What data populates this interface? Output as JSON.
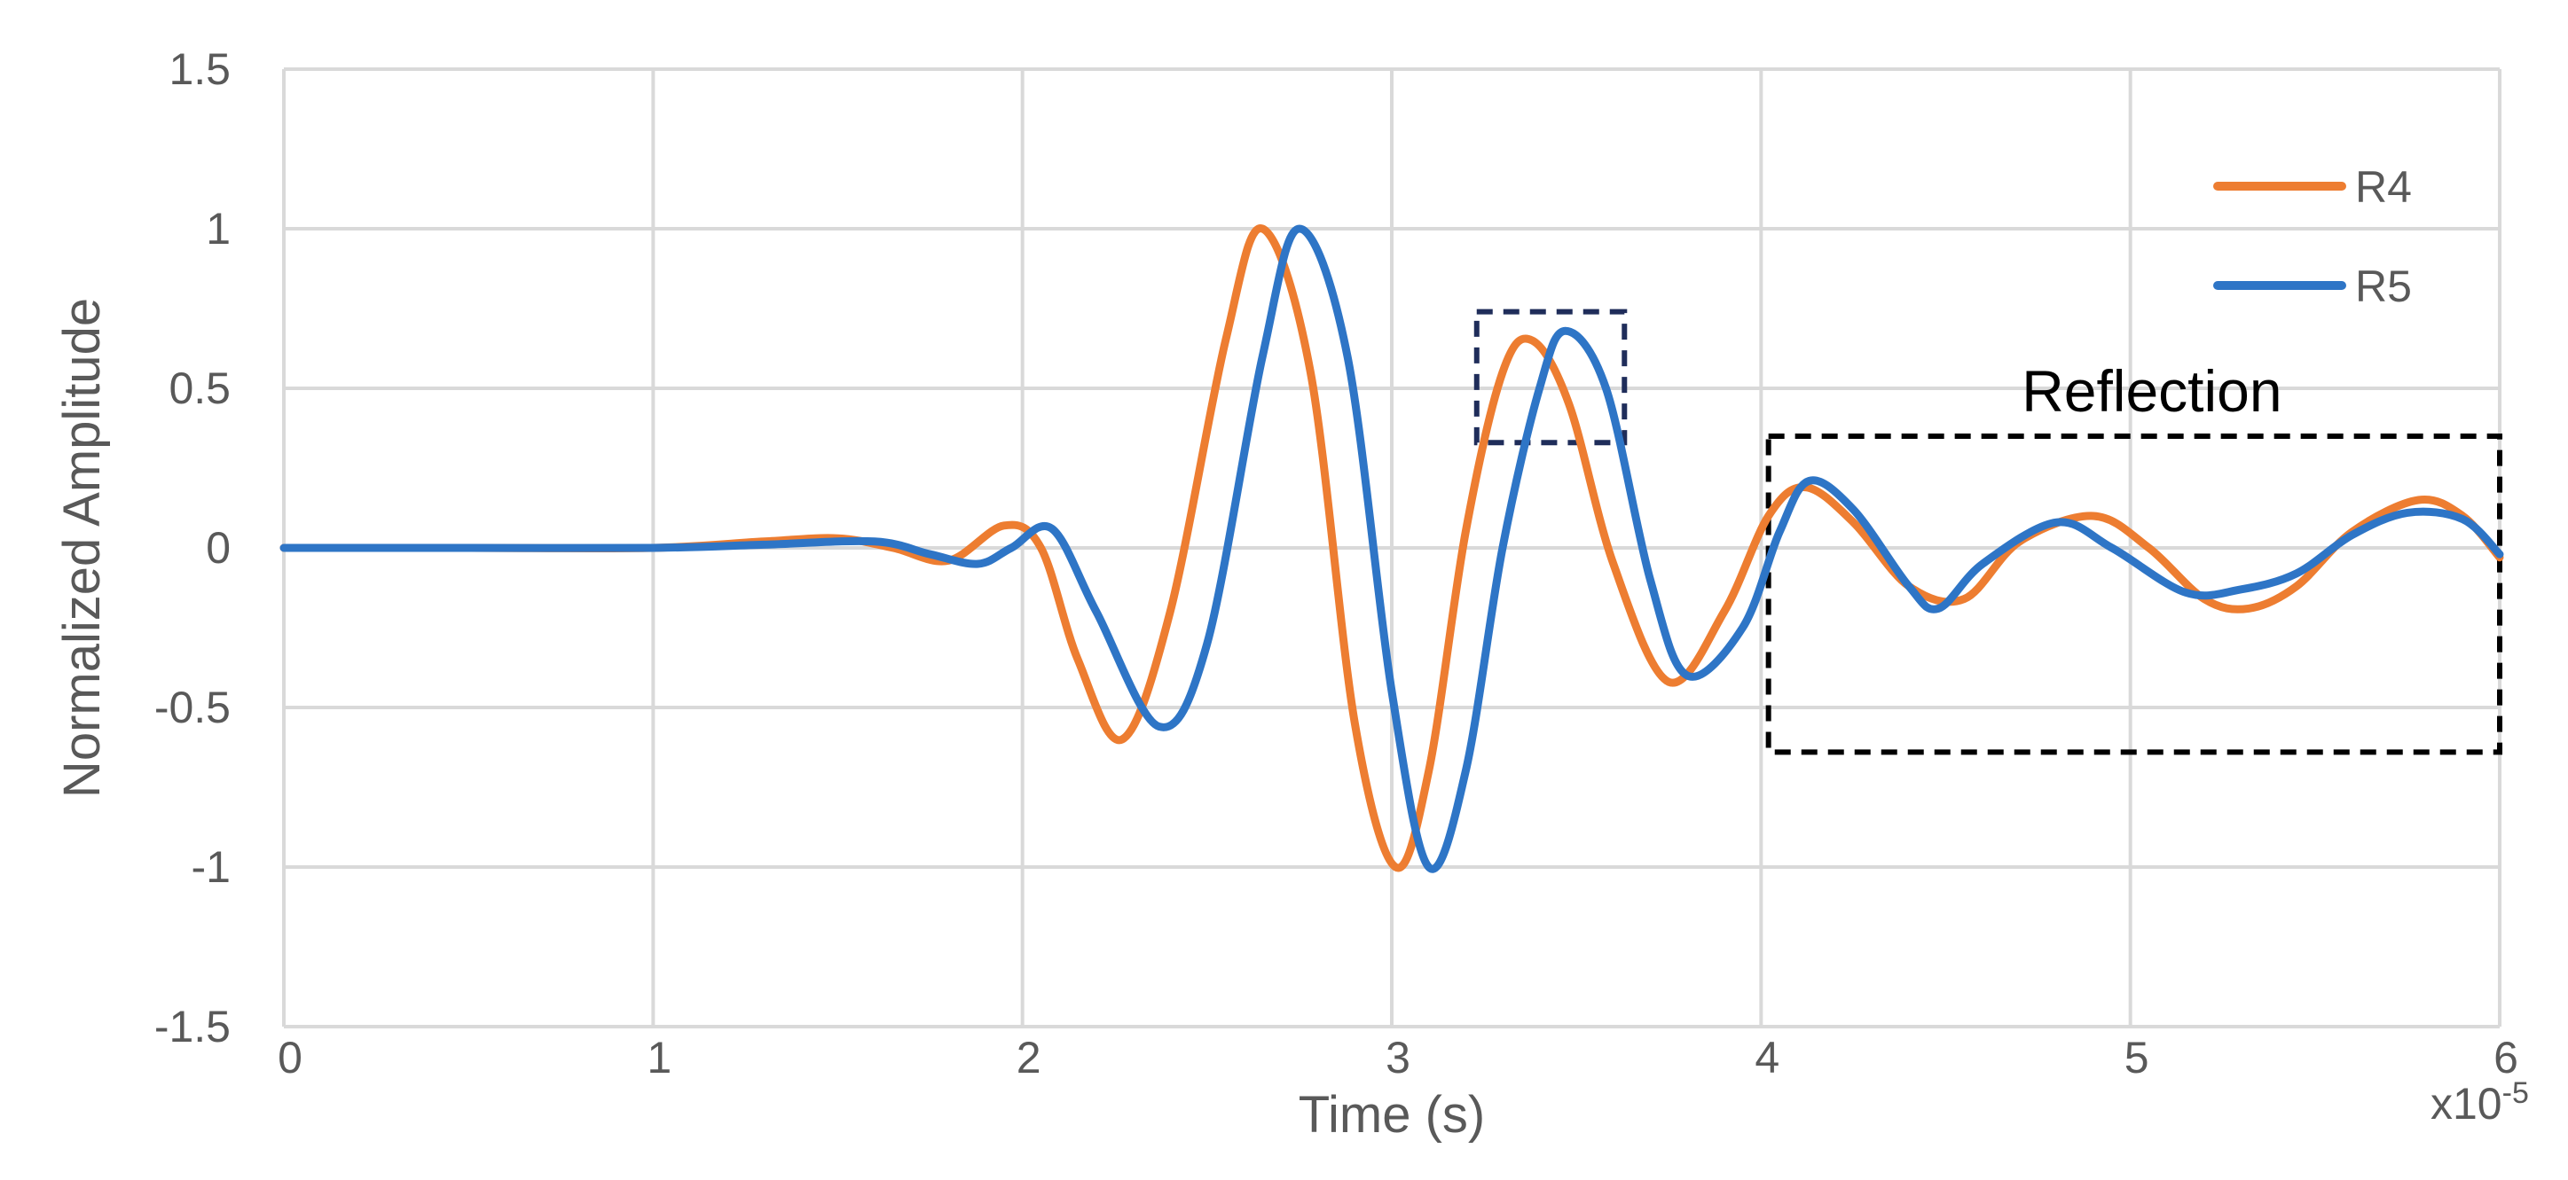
{
  "chart_data": {
    "type": "line",
    "xlabel": "Time (s)",
    "ylabel": "Normalized Amplitude",
    "x_multiplier_label": "x10",
    "x_multiplier_exp": "-5",
    "xlim": [
      0,
      6
    ],
    "ylim": [
      -1.5,
      1.5
    ],
    "xticks": [
      "0",
      "1",
      "2",
      "3",
      "4",
      "5",
      "6"
    ],
    "yticks": [
      "1.5",
      "1",
      "0.5",
      "0",
      "-0.5",
      "-1",
      "-1.5"
    ],
    "grid": true,
    "legend_position": "top-right",
    "series": [
      {
        "name": "R4",
        "color": "#ED7D31",
        "x": [
          0,
          0.5,
          1.0,
          1.3,
          1.5,
          1.65,
          1.8,
          1.95,
          2.05,
          2.15,
          2.27,
          2.4,
          2.55,
          2.65,
          2.78,
          2.9,
          3.01,
          3.1,
          3.2,
          3.3,
          3.38,
          3.48,
          3.6,
          3.75,
          3.9,
          4.02,
          4.12,
          4.25,
          4.4,
          4.55,
          4.7,
          4.9,
          5.05,
          5.2,
          5.32,
          5.45,
          5.6,
          5.78,
          5.9,
          6.0
        ],
        "y": [
          0,
          0,
          0,
          0.02,
          0.03,
          0.0,
          -0.04,
          0.07,
          0.0,
          -0.35,
          -0.6,
          -0.2,
          0.65,
          1.0,
          0.55,
          -0.55,
          -1.0,
          -0.7,
          0.05,
          0.55,
          0.65,
          0.45,
          -0.05,
          -0.42,
          -0.2,
          0.1,
          0.19,
          0.08,
          -0.12,
          -0.16,
          0.02,
          0.1,
          0.0,
          -0.16,
          -0.19,
          -0.12,
          0.05,
          0.15,
          0.1,
          -0.03
        ]
      },
      {
        "name": "R5",
        "color": "#2E75C6",
        "x": [
          0,
          0.5,
          1.0,
          1.3,
          1.6,
          1.75,
          1.88,
          1.97,
          2.08,
          2.2,
          2.37,
          2.5,
          2.65,
          2.75,
          2.88,
          3.0,
          3.1,
          3.2,
          3.3,
          3.4,
          3.47,
          3.58,
          3.7,
          3.8,
          3.95,
          4.05,
          4.13,
          4.25,
          4.4,
          4.48,
          4.6,
          4.8,
          4.95,
          5.15,
          5.3,
          5.45,
          5.6,
          5.75,
          5.9,
          6.0
        ],
        "y": [
          0,
          0,
          0,
          0.01,
          0.02,
          -0.02,
          -0.05,
          0.0,
          0.06,
          -0.2,
          -0.56,
          -0.3,
          0.6,
          1.0,
          0.6,
          -0.45,
          -1.0,
          -0.7,
          0.0,
          0.5,
          0.68,
          0.5,
          -0.1,
          -0.4,
          -0.25,
          0.05,
          0.21,
          0.12,
          -0.12,
          -0.19,
          -0.05,
          0.08,
          0.0,
          -0.14,
          -0.13,
          -0.08,
          0.04,
          0.11,
          0.09,
          -0.02
        ]
      }
    ],
    "annotations": [
      {
        "name": "small-box",
        "x_range": [
          3.23,
          3.63
        ],
        "y_range": [
          0.33,
          0.74
        ],
        "label": "",
        "color": "#1f2d5a"
      },
      {
        "name": "reflection-box",
        "x_range": [
          4.02,
          6.0
        ],
        "y_range": [
          -0.64,
          0.35
        ],
        "label": "Reflection",
        "color": "#000000"
      }
    ]
  }
}
